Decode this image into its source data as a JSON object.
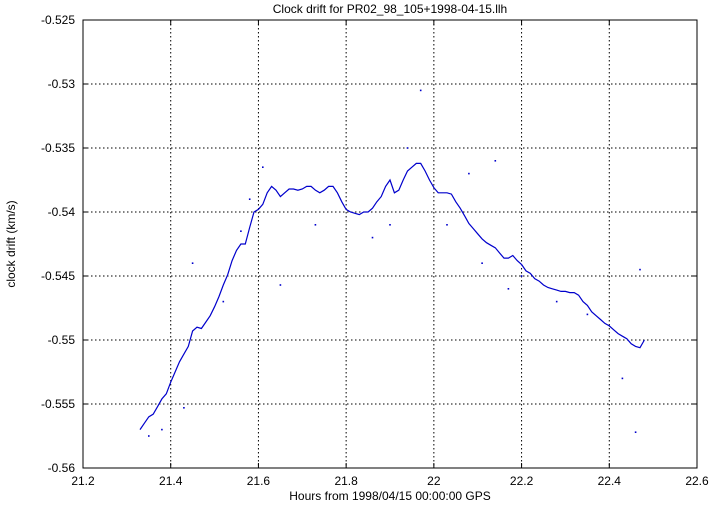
{
  "chart_data": {
    "type": "scatter",
    "title": "Clock drift for PR02_98_105+1998-04-15.llh",
    "xlabel": "Hours from 1998/04/15 00:00:00 GPS",
    "ylabel": "clock drift (km/s)",
    "xlim": [
      21.2,
      22.6
    ],
    "ylim": [
      -0.56,
      -0.525
    ],
    "x_ticks": [
      21.2,
      21.4,
      21.6,
      21.8,
      22,
      22.2,
      22.4,
      22.6
    ],
    "x_tick_labels": [
      "21.2",
      "21.4",
      "21.6",
      "21.8",
      "22",
      "22.2",
      "22.4",
      "22.6"
    ],
    "y_ticks": [
      -0.525,
      -0.53,
      -0.535,
      -0.54,
      -0.545,
      -0.55,
      -0.555,
      -0.56
    ],
    "y_tick_labels": [
      "-0.525",
      "-0.53",
      "-0.535",
      "-0.54",
      "-0.545",
      "-0.55",
      "-0.555",
      "-0.56"
    ],
    "grid": true,
    "legend": "none",
    "color": "#0000cc",
    "series": [
      {
        "x": [
          21.33,
          21.34,
          21.35,
          21.36,
          21.37,
          21.38,
          21.39,
          21.4,
          21.41,
          21.42,
          21.43,
          21.44,
          21.45,
          21.46,
          21.47,
          21.48,
          21.49,
          21.5,
          21.51,
          21.52,
          21.53,
          21.54,
          21.55,
          21.56,
          21.57,
          21.58,
          21.59,
          21.6,
          21.61,
          21.62,
          21.63,
          21.64,
          21.65,
          21.66,
          21.67,
          21.68,
          21.69,
          21.7,
          21.71,
          21.72,
          21.73,
          21.74,
          21.75,
          21.76,
          21.77,
          21.78,
          21.79,
          21.8,
          21.81,
          21.82,
          21.83,
          21.84,
          21.85,
          21.86,
          21.87,
          21.88,
          21.89,
          21.9,
          21.91,
          21.92,
          21.93,
          21.94,
          21.95,
          21.96,
          21.97,
          21.98,
          21.99,
          22.0,
          22.01,
          22.02,
          22.03,
          22.04,
          22.05,
          22.06,
          22.07,
          22.08,
          22.09,
          22.1,
          22.11,
          22.12,
          22.13,
          22.14,
          22.15,
          22.16,
          22.17,
          22.18,
          22.19,
          22.2,
          22.21,
          22.22,
          22.23,
          22.24,
          22.25,
          22.26,
          22.27,
          22.28,
          22.29,
          22.3,
          22.31,
          22.32,
          22.33,
          22.34,
          22.35,
          22.36,
          22.37,
          22.38,
          22.39,
          22.4,
          22.41,
          22.42,
          22.43,
          22.44,
          22.45,
          22.46,
          22.47,
          22.48
        ],
        "y": [
          -0.557,
          -0.5565,
          -0.556,
          -0.5558,
          -0.5552,
          -0.5546,
          -0.5542,
          -0.5533,
          -0.5525,
          -0.5517,
          -0.5511,
          -0.5505,
          -0.5493,
          -0.549,
          -0.5491,
          -0.5486,
          -0.5481,
          -0.5474,
          -0.5466,
          -0.5457,
          -0.5449,
          -0.5438,
          -0.543,
          -0.5425,
          -0.5425,
          -0.5412,
          -0.54,
          -0.5398,
          -0.5394,
          -0.5385,
          -0.538,
          -0.5383,
          -0.5388,
          -0.5385,
          -0.5382,
          -0.5382,
          -0.5383,
          -0.5382,
          -0.538,
          -0.538,
          -0.5383,
          -0.5385,
          -0.5383,
          -0.538,
          -0.538,
          -0.5385,
          -0.5392,
          -0.5398,
          -0.54,
          -0.5401,
          -0.5402,
          -0.54,
          -0.54,
          -0.5397,
          -0.5392,
          -0.5388,
          -0.538,
          -0.5375,
          -0.5385,
          -0.5383,
          -0.5375,
          -0.5368,
          -0.5365,
          -0.5362,
          -0.5362,
          -0.5368,
          -0.5375,
          -0.5381,
          -0.5385,
          -0.5385,
          -0.5385,
          -0.5386,
          -0.5392,
          -0.5397,
          -0.5403,
          -0.5409,
          -0.5413,
          -0.5417,
          -0.5421,
          -0.5424,
          -0.5426,
          -0.5428,
          -0.5432,
          -0.5436,
          -0.5436,
          -0.5434,
          -0.5438,
          -0.5441,
          -0.5446,
          -0.5448,
          -0.5452,
          -0.5454,
          -0.5457,
          -0.5459,
          -0.546,
          -0.5461,
          -0.5462,
          -0.5462,
          -0.5463,
          -0.5463,
          -0.5465,
          -0.547,
          -0.5473,
          -0.5478,
          -0.5481,
          -0.5484,
          -0.5487,
          -0.5489,
          -0.5492,
          -0.5495,
          -0.5497,
          -0.5499,
          -0.5503,
          -0.5505,
          -0.5506,
          -0.55
        ]
      }
    ],
    "outliers": {
      "x": [
        21.35,
        21.38,
        21.43,
        21.45,
        21.52,
        21.56,
        21.58,
        21.61,
        21.65,
        21.73,
        21.86,
        21.9,
        21.94,
        21.97,
        22.03,
        22.08,
        22.11,
        22.14,
        22.17,
        22.2,
        22.28,
        22.35,
        22.43,
        22.46,
        22.47
      ],
      "y": [
        -0.5575,
        -0.557,
        -0.5553,
        -0.544,
        -0.547,
        -0.5415,
        -0.539,
        -0.5365,
        -0.5457,
        -0.541,
        -0.542,
        -0.541,
        -0.535,
        -0.5305,
        -0.541,
        -0.537,
        -0.544,
        -0.536,
        -0.546,
        -0.545,
        -0.547,
        -0.548,
        -0.553,
        -0.5572,
        -0.5445
      ]
    }
  }
}
